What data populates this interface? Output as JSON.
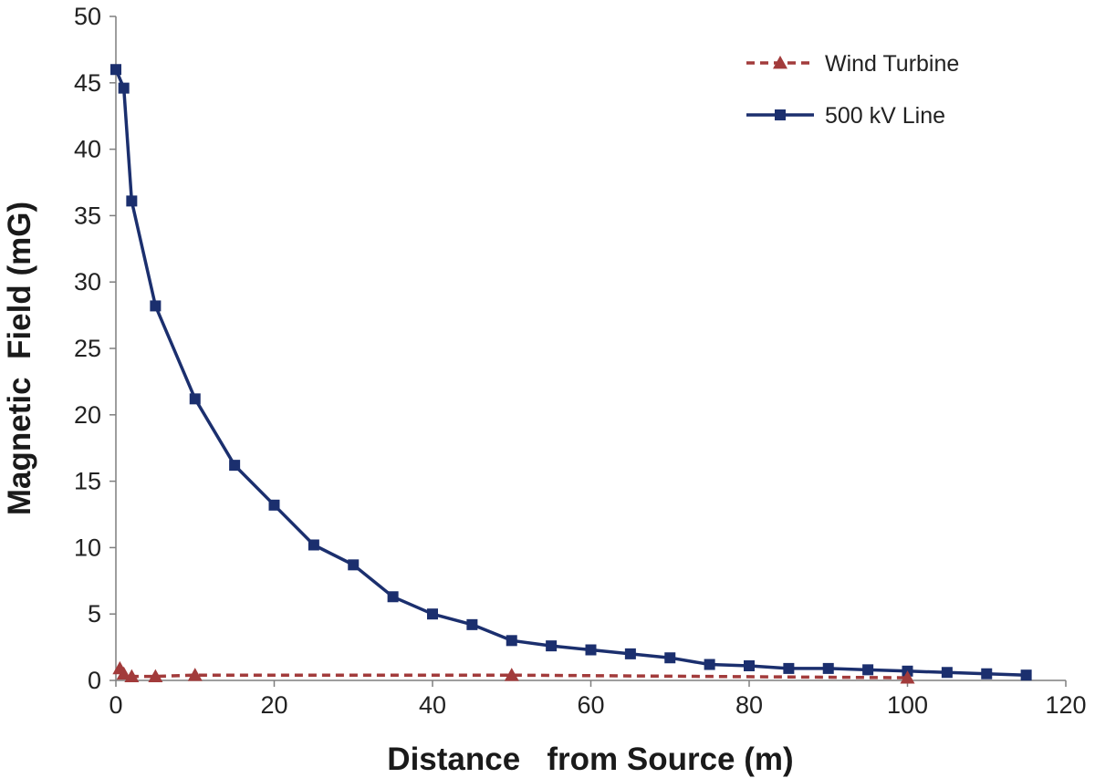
{
  "chart_data": {
    "type": "line",
    "title": "",
    "xlabel": "Distance   from Source (m)",
    "ylabel": "Magnetic  Field (mG)",
    "xlim": [
      0,
      120
    ],
    "ylim": [
      0,
      50
    ],
    "xticks": [
      0,
      20,
      40,
      60,
      80,
      100,
      120
    ],
    "yticks": [
      0,
      5,
      10,
      15,
      20,
      25,
      30,
      35,
      40,
      45,
      50
    ],
    "grid": false,
    "legend_position": "top-right",
    "series": [
      {
        "name": "Wind Turbine",
        "color": "#a23b3b",
        "line_style": "dashed",
        "marker": "triangle",
        "points": [
          {
            "x": 0.5,
            "y": 0.9
          },
          {
            "x": 1,
            "y": 0.5
          },
          {
            "x": 2,
            "y": 0.3
          },
          {
            "x": 5,
            "y": 0.3
          },
          {
            "x": 10,
            "y": 0.4
          },
          {
            "x": 50,
            "y": 0.4
          },
          {
            "x": 100,
            "y": 0.2
          }
        ]
      },
      {
        "name": "500 kV Line",
        "color": "#1b2f6e",
        "line_style": "solid",
        "marker": "square",
        "points": [
          {
            "x": 0,
            "y": 46
          },
          {
            "x": 1,
            "y": 44.6
          },
          {
            "x": 2,
            "y": 36.1
          },
          {
            "x": 5,
            "y": 28.2
          },
          {
            "x": 10,
            "y": 21.2
          },
          {
            "x": 15,
            "y": 16.2
          },
          {
            "x": 20,
            "y": 13.2
          },
          {
            "x": 25,
            "y": 10.2
          },
          {
            "x": 30,
            "y": 8.7
          },
          {
            "x": 35,
            "y": 6.3
          },
          {
            "x": 40,
            "y": 5.0
          },
          {
            "x": 45,
            "y": 4.2
          },
          {
            "x": 50,
            "y": 3.0
          },
          {
            "x": 55,
            "y": 2.6
          },
          {
            "x": 60,
            "y": 2.3
          },
          {
            "x": 65,
            "y": 2.0
          },
          {
            "x": 70,
            "y": 1.7
          },
          {
            "x": 75,
            "y": 1.2
          },
          {
            "x": 80,
            "y": 1.1
          },
          {
            "x": 85,
            "y": 0.9
          },
          {
            "x": 90,
            "y": 0.9
          },
          {
            "x": 95,
            "y": 0.8
          },
          {
            "x": 100,
            "y": 0.7
          },
          {
            "x": 105,
            "y": 0.6
          },
          {
            "x": 110,
            "y": 0.5
          },
          {
            "x": 115,
            "y": 0.4
          }
        ]
      }
    ]
  }
}
